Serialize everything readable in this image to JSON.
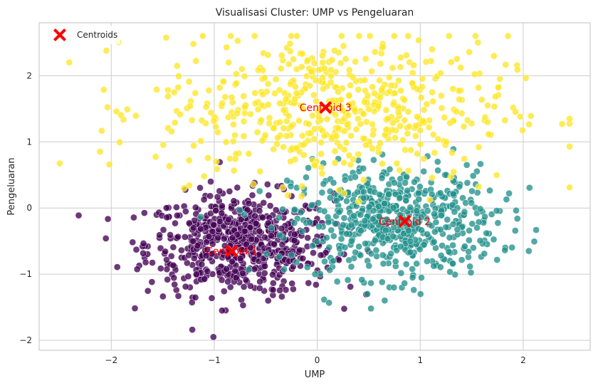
{
  "chart_data": {
    "type": "scatter",
    "title": "Visualisasi Cluster: UMP vs Pengeluaran",
    "xlabel": "UMP",
    "ylabel": "Pengeluaran",
    "xlim": [
      -2.7,
      2.65
    ],
    "ylim": [
      -2.15,
      2.8
    ],
    "x_ticks": [
      -2,
      -1,
      0,
      1,
      2
    ],
    "y_ticks": [
      -2,
      -1,
      0,
      1,
      2
    ],
    "x_tick_labels": [
      "−2",
      "−1",
      "0",
      "1",
      "2"
    ],
    "y_tick_labels": [
      "−2",
      "−1",
      "0",
      "1",
      "2"
    ],
    "grid": true,
    "legend": {
      "placement": "top-left",
      "entries": [
        "Centroids"
      ]
    },
    "clusters": [
      {
        "color": "#440154",
        "center": [
          -0.75,
          -0.55
        ],
        "spread": [
          0.45,
          0.38
        ],
        "count": 650
      },
      {
        "color": "#21918c",
        "center": [
          0.75,
          -0.2
        ],
        "spread": [
          0.5,
          0.42
        ],
        "count": 600
      },
      {
        "color": "#fde725",
        "center": [
          0.15,
          1.5
        ],
        "spread": [
          0.85,
          0.55
        ],
        "count": 560
      }
    ],
    "centroids": [
      {
        "label": "Centroid 1",
        "x": -0.83,
        "y": -0.65
      },
      {
        "label": "Centroid 2",
        "x": 0.85,
        "y": -0.2
      },
      {
        "label": "Centroid 3",
        "x": 0.08,
        "y": 1.52
      }
    ],
    "centroid_color": "#ff0000"
  }
}
